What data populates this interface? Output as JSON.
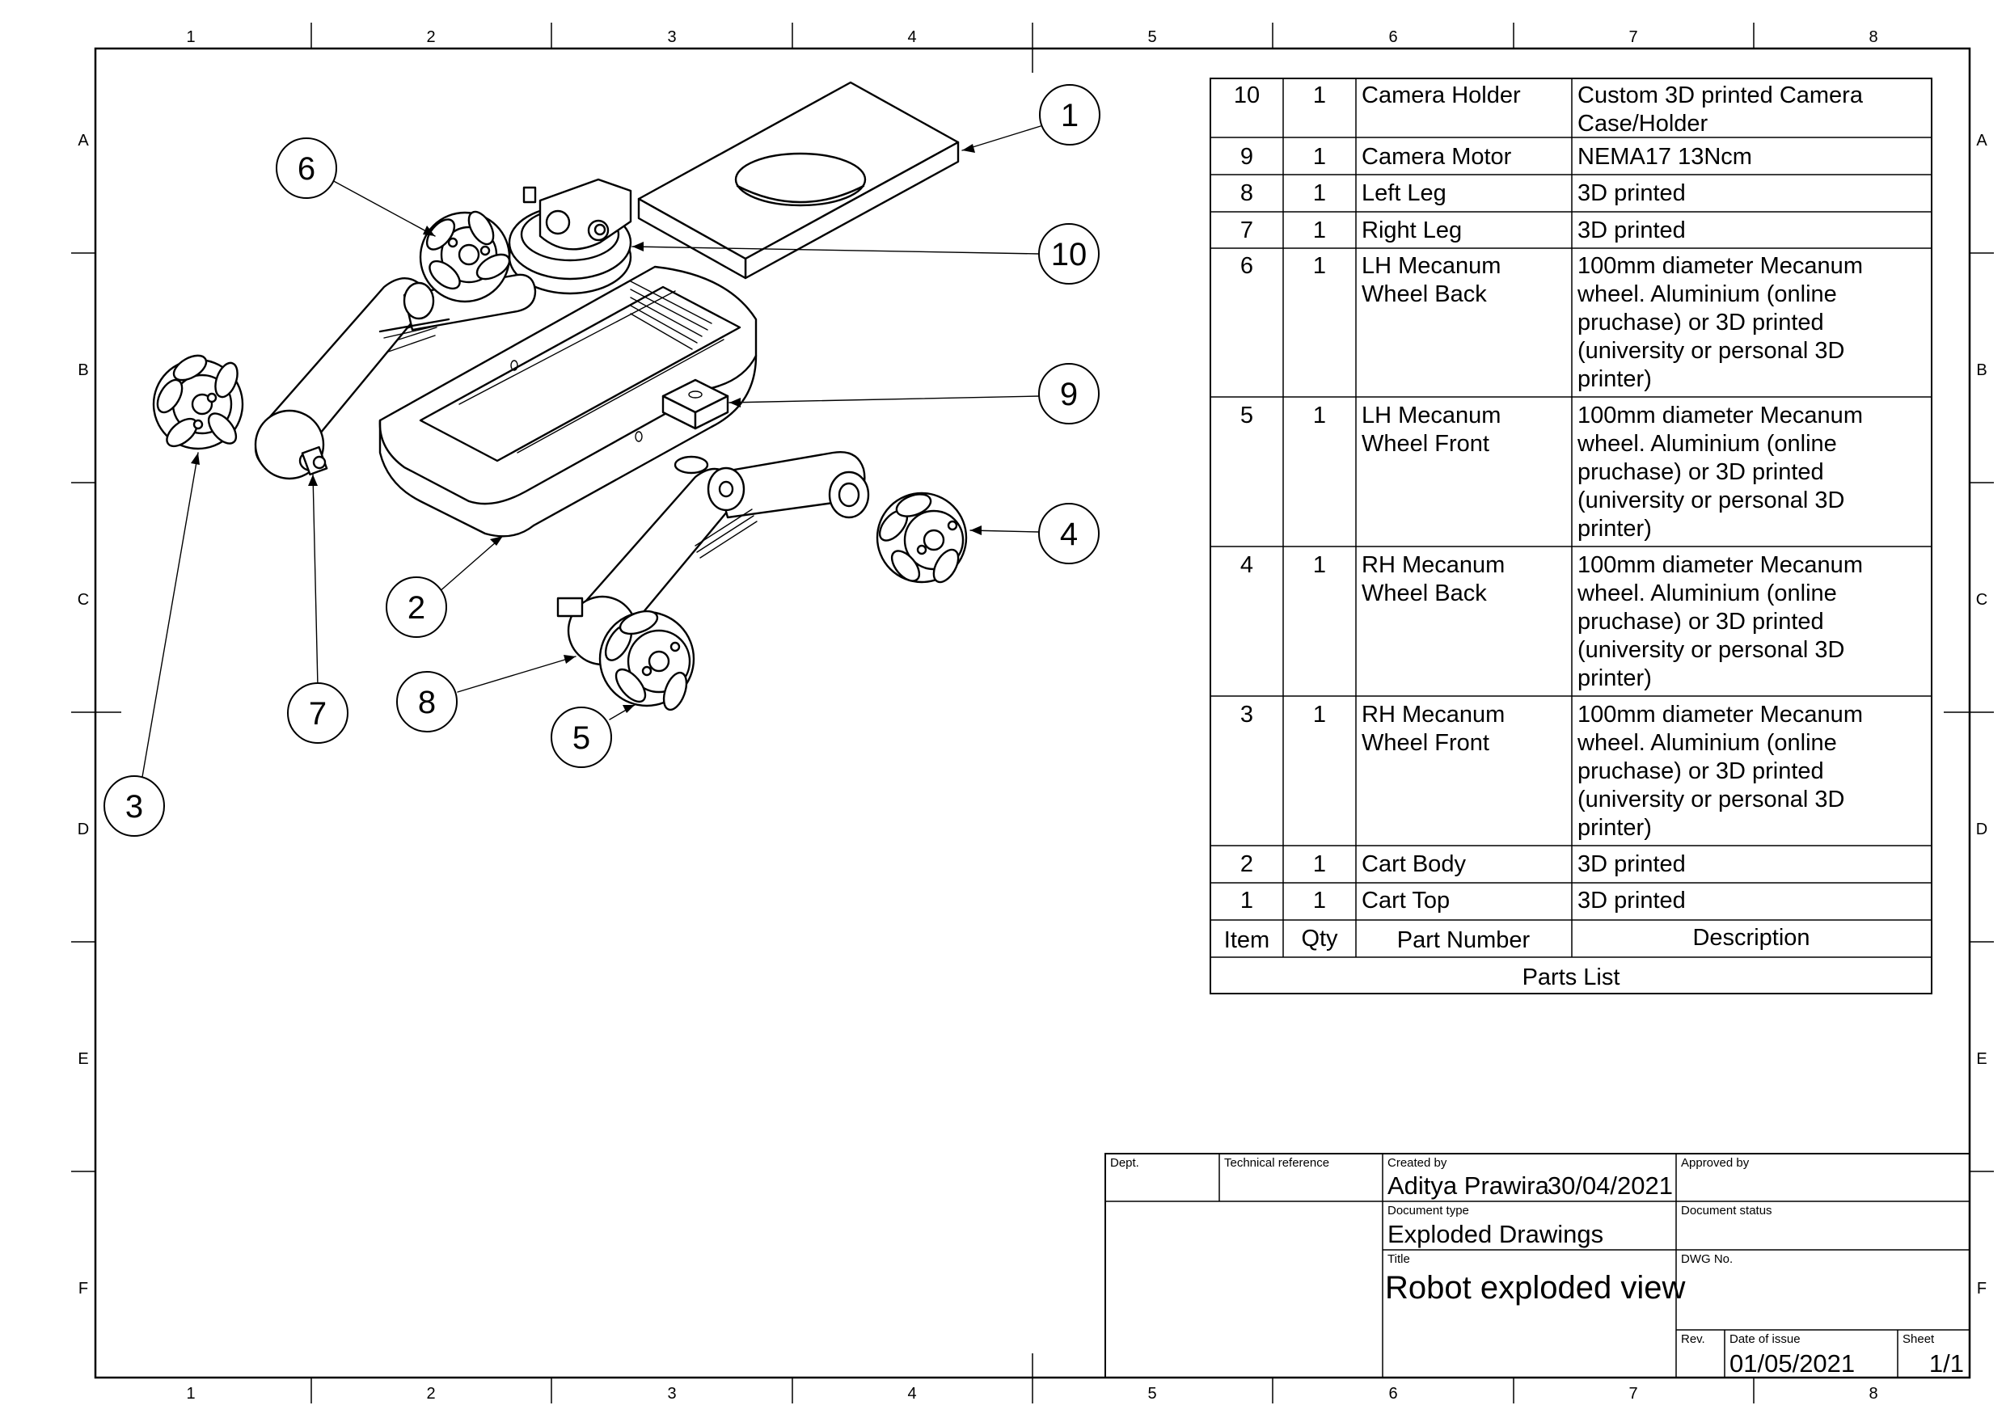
{
  "zones": {
    "columns": [
      "1",
      "2",
      "3",
      "4",
      "5",
      "6",
      "7",
      "8"
    ],
    "rows": [
      "A",
      "B",
      "C",
      "D",
      "E",
      "F"
    ]
  },
  "balloons": [
    "1",
    "2",
    "3",
    "4",
    "5",
    "6",
    "7",
    "8",
    "9",
    "10"
  ],
  "parts_list": {
    "title": "Parts List",
    "headers": {
      "item": "Item",
      "qty": "Qty",
      "part": "Part Number",
      "desc": "Description"
    },
    "rows": [
      {
        "item": "10",
        "qty": "1",
        "part": [
          "Camera Holder"
        ],
        "desc": [
          "Custom 3D printed Camera",
          "Case/Holder"
        ]
      },
      {
        "item": "9",
        "qty": "1",
        "part": [
          "Camera Motor"
        ],
        "desc": [
          "NEMA17 13Ncm"
        ]
      },
      {
        "item": "8",
        "qty": "1",
        "part": [
          "Left Leg"
        ],
        "desc": [
          "3D printed"
        ]
      },
      {
        "item": "7",
        "qty": "1",
        "part": [
          "Right Leg"
        ],
        "desc": [
          "3D printed"
        ]
      },
      {
        "item": "6",
        "qty": "1",
        "part": [
          "LH Mecanum",
          "Wheel Back"
        ],
        "desc": [
          "100mm diameter Mecanum",
          "wheel. Aluminium (online",
          "pruchase) or 3D printed",
          "(university or personal 3D",
          "printer)"
        ]
      },
      {
        "item": "5",
        "qty": "1",
        "part": [
          "LH Mecanum",
          "Wheel Front"
        ],
        "desc": [
          "100mm diameter Mecanum",
          "wheel. Aluminium (online",
          "pruchase) or 3D printed",
          "(university or personal 3D",
          "printer)"
        ]
      },
      {
        "item": "4",
        "qty": "1",
        "part": [
          "RH Mecanum",
          "Wheel Back"
        ],
        "desc": [
          "100mm diameter Mecanum",
          "wheel. Aluminium (online",
          "pruchase) or 3D printed",
          "(university or personal 3D",
          "printer)"
        ]
      },
      {
        "item": "3",
        "qty": "1",
        "part": [
          "RH Mecanum",
          "Wheel Front"
        ],
        "desc": [
          "100mm diameter Mecanum",
          "wheel. Aluminium (online",
          "pruchase) or 3D printed",
          "(university or personal 3D",
          "printer)"
        ]
      },
      {
        "item": "2",
        "qty": "1",
        "part": [
          "Cart Body"
        ],
        "desc": [
          "3D printed"
        ]
      },
      {
        "item": "1",
        "qty": "1",
        "part": [
          "Cart Top"
        ],
        "desc": [
          "3D printed"
        ]
      }
    ]
  },
  "title_block": {
    "dept_label": "Dept.",
    "tech_ref_label": "Technical reference",
    "created_by_label": "Created by",
    "created_by": "Aditya Prawira",
    "created_date": "30/04/2021",
    "approved_by_label": "Approved by",
    "doc_type_label": "Document type",
    "doc_type": "Exploded Drawings",
    "doc_status_label": "Document status",
    "title_label": "Title",
    "title": "Robot exploded view",
    "dwg_no_label": "DWG No.",
    "rev_label": "Rev.",
    "date_of_issue_label": "Date of issue",
    "date_of_issue": "01/05/2021",
    "sheet_label": "Sheet",
    "sheet": "1/1"
  }
}
